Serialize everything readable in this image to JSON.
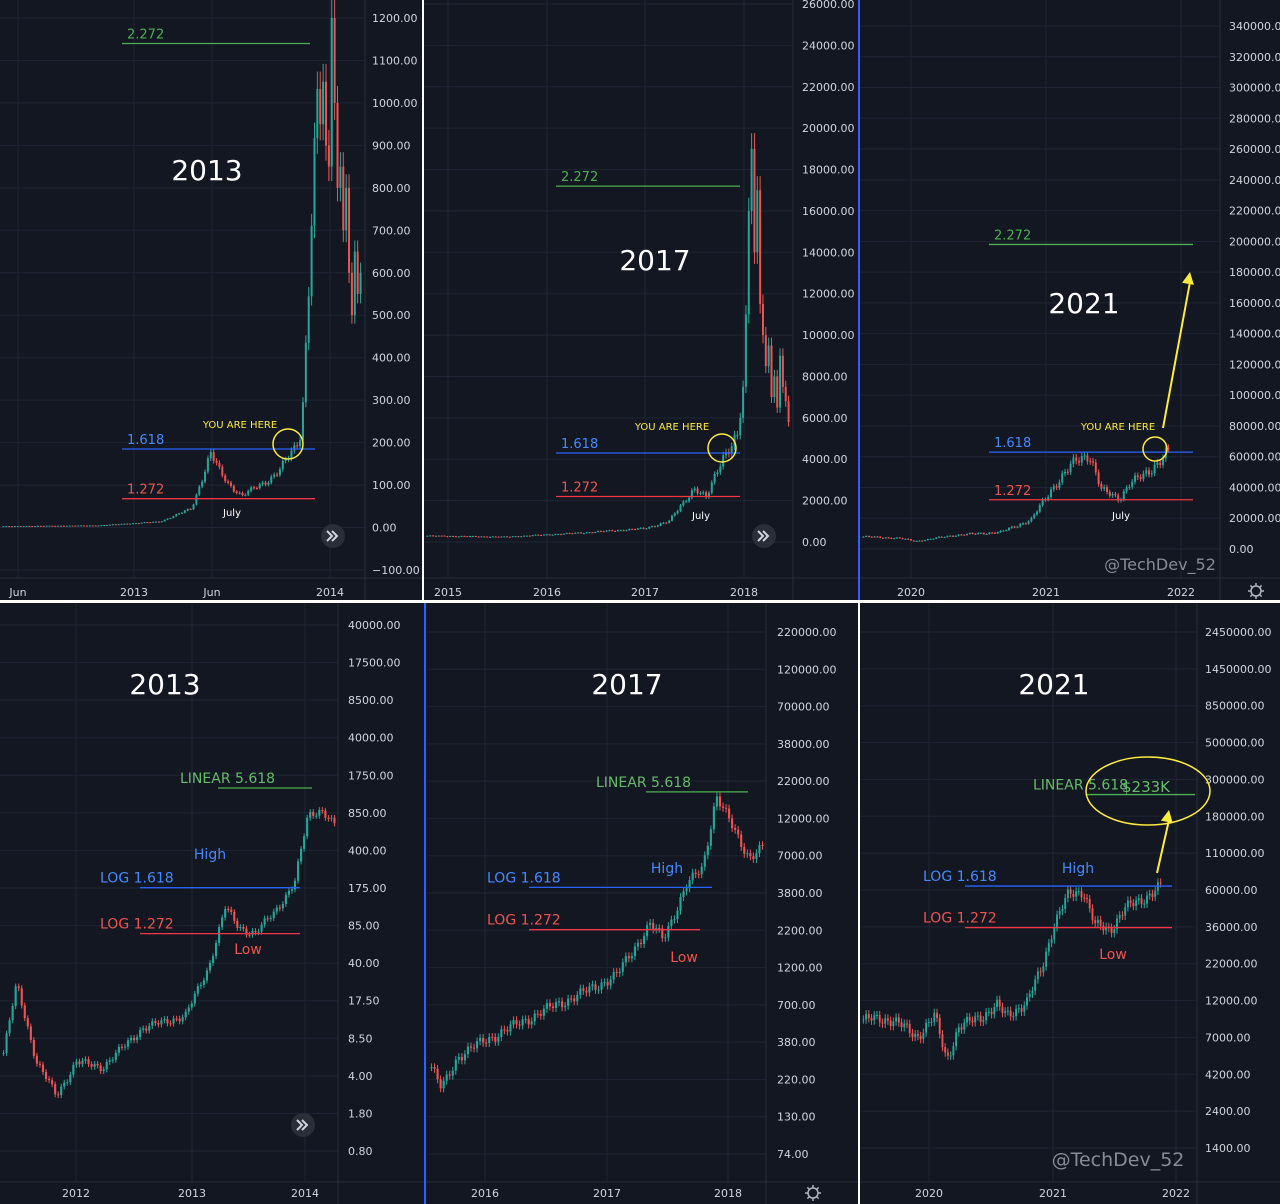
{
  "watermark": "@TechDev_52",
  "colors": {
    "background": "#131722",
    "grid": "#1e2433",
    "axis_text": "#d1d4dc",
    "bull": "#26a69a",
    "bear": "#ef5350",
    "fib_2272": "#4caf50",
    "fib_1618": "#2962ff",
    "fib_1272": "#f23645",
    "linear_label": "#66bb6a",
    "log_1618_label": "#448aff",
    "log_1272_label": "#ef5350",
    "annotation_yellow": "#ffeb3b",
    "divider_blue": "#2962ff"
  },
  "icons": {
    "scroll": "double-chevron-right-icon",
    "settings": "gear-icon"
  },
  "chart_data": [
    {
      "type": "candlestick",
      "scale": "linear",
      "title": "2013",
      "y_ticks": [
        "1200.00",
        "1100.00",
        "1000.00",
        "900.00",
        "800.00",
        "700.00",
        "600.00",
        "500.00",
        "400.00",
        "300.00",
        "200.00",
        "100.00",
        "0.00",
        "−100.00"
      ],
      "x_ticks": [
        "Jun",
        "2013",
        "Jun",
        "2014"
      ],
      "fib_levels": [
        {
          "label": "2.272",
          "price": 1140
        },
        {
          "label": "1.618",
          "price": 185
        },
        {
          "label": "1.272",
          "price": 68
        }
      ],
      "annotations": {
        "you_are_here": "YOU ARE HERE",
        "month_marker": "July"
      },
      "waypoints": [
        {
          "t": 0.0,
          "p": 3
        },
        {
          "t": 0.3,
          "p": 5
        },
        {
          "t": 0.5,
          "p": 14
        },
        {
          "t": 0.6,
          "p": 45
        },
        {
          "t": 0.66,
          "p": 175
        },
        {
          "t": 0.69,
          "p": 130
        },
        {
          "t": 0.72,
          "p": 100
        },
        {
          "t": 0.76,
          "p": 75
        },
        {
          "t": 0.84,
          "p": 110
        },
        {
          "t": 0.88,
          "p": 135
        },
        {
          "t": 0.93,
          "p": 190
        },
        {
          "t": 0.95,
          "p": 230
        },
        {
          "t": 1.0,
          "p": 1000
        }
      ],
      "tail": [
        950,
        1050,
        900,
        850,
        1200,
        1000,
        800,
        850,
        700,
        800,
        600,
        500,
        650,
        550,
        600
      ]
    },
    {
      "type": "candlestick",
      "scale": "linear",
      "title": "2017",
      "y_ticks": [
        "26000.00",
        "24000.00",
        "22000.00",
        "20000.00",
        "18000.00",
        "16000.00",
        "14000.00",
        "12000.00",
        "10000.00",
        "8000.00",
        "6000.00",
        "4000.00",
        "2000.00",
        "0.00"
      ],
      "x_ticks": [
        "2015",
        "2016",
        "2017",
        "2018"
      ],
      "fib_levels": [
        {
          "label": "2.272",
          "price": 17200
        },
        {
          "label": "1.618",
          "price": 4300
        },
        {
          "label": "1.272",
          "price": 2200
        }
      ],
      "annotations": {
        "you_are_here": "YOU ARE HERE",
        "month_marker": "July"
      },
      "waypoints": [
        {
          "t": 0.0,
          "p": 300
        },
        {
          "t": 0.25,
          "p": 250
        },
        {
          "t": 0.48,
          "p": 430
        },
        {
          "t": 0.7,
          "p": 650
        },
        {
          "t": 0.78,
          "p": 1000
        },
        {
          "t": 0.86,
          "p": 2600
        },
        {
          "t": 0.9,
          "p": 2100
        },
        {
          "t": 0.95,
          "p": 4100
        },
        {
          "t": 1.0,
          "p": 5000
        }
      ],
      "tail": [
        6000,
        7500,
        11000,
        16000,
        19000,
        14000,
        17000,
        11500,
        10000,
        8500,
        9500,
        7000,
        8000,
        6500,
        9000,
        7500,
        6800,
        5800
      ]
    },
    {
      "type": "candlestick",
      "scale": "linear",
      "title": "2021",
      "y_ticks": [
        "340000.00",
        "320000.00",
        "300000.00",
        "280000.00",
        "260000.00",
        "240000.00",
        "220000.00",
        "200000.00",
        "180000.00",
        "160000.00",
        "140000.00",
        "120000.00",
        "100000.00",
        "80000.00",
        "60000.00",
        "40000.00",
        "20000.00",
        "0.00"
      ],
      "x_ticks": [
        "2020",
        "2021",
        "2022"
      ],
      "fib_levels": [
        {
          "label": "2.272",
          "price": 198000
        },
        {
          "label": "1.618",
          "price": 63000
        },
        {
          "label": "1.272",
          "price": 32000
        }
      ],
      "annotations": {
        "you_are_here": "YOU ARE HERE",
        "month_marker": "July"
      },
      "waypoints": [
        {
          "t": 0.0,
          "p": 8000
        },
        {
          "t": 0.12,
          "p": 7000
        },
        {
          "t": 0.17,
          "p": 5000
        },
        {
          "t": 0.3,
          "p": 9000
        },
        {
          "t": 0.45,
          "p": 11000
        },
        {
          "t": 0.55,
          "p": 19000
        },
        {
          "t": 0.62,
          "p": 40000
        },
        {
          "t": 0.7,
          "p": 58000
        },
        {
          "t": 0.74,
          "p": 62000
        },
        {
          "t": 0.78,
          "p": 38000
        },
        {
          "t": 0.84,
          "p": 33000
        },
        {
          "t": 0.87,
          "p": 42000
        },
        {
          "t": 0.92,
          "p": 48000
        },
        {
          "t": 1.0,
          "p": 63000
        }
      ],
      "tail": []
    },
    {
      "type": "candlestick",
      "scale": "log",
      "title": "2013",
      "y_ticks": [
        "40000.00",
        "17500.00",
        "8500.00",
        "4000.00",
        "1750.00",
        "850.00",
        "400.00",
        "175.00",
        "85.00",
        "40.00",
        "17.50",
        "8.50",
        "4.00",
        "1.80",
        "0.80"
      ],
      "x_ticks": [
        "2012",
        "2013",
        "2014"
      ],
      "fib_levels": [
        {
          "label": "LINEAR 5.618",
          "price": 1400
        },
        {
          "label": "LOG 1.618",
          "price": 180
        },
        {
          "label": "LOG 1.272",
          "price": 70
        }
      ],
      "annotations": {
        "high": "High",
        "low": "Low"
      },
      "waypoints": [
        {
          "t": 0.0,
          "p": 6
        },
        {
          "t": 0.04,
          "p": 25
        },
        {
          "t": 0.1,
          "p": 5
        },
        {
          "t": 0.16,
          "p": 2.5
        },
        {
          "t": 0.22,
          "p": 5
        },
        {
          "t": 0.3,
          "p": 4.5
        },
        {
          "t": 0.42,
          "p": 10
        },
        {
          "t": 0.55,
          "p": 13
        },
        {
          "t": 0.62,
          "p": 35
        },
        {
          "t": 0.67,
          "p": 120
        },
        {
          "t": 0.71,
          "p": 80
        },
        {
          "t": 0.76,
          "p": 70
        },
        {
          "t": 0.82,
          "p": 110
        },
        {
          "t": 0.88,
          "p": 200
        },
        {
          "t": 0.92,
          "p": 800
        },
        {
          "t": 0.96,
          "p": 900
        },
        {
          "t": 1.0,
          "p": 650
        }
      ],
      "tail": []
    },
    {
      "type": "candlestick",
      "scale": "log",
      "title": "2017",
      "y_ticks": [
        "220000.00",
        "120000.00",
        "70000.00",
        "38000.00",
        "22000.00",
        "12000.00",
        "7000.00",
        "3800.00",
        "2200.00",
        "1200.00",
        "700.00",
        "380.00",
        "220.00",
        "130.00",
        "74.00"
      ],
      "x_ticks": [
        "2016",
        "2017",
        "2018"
      ],
      "fib_levels": [
        {
          "label": "LINEAR 5.618",
          "price": 19000
        },
        {
          "label": "LOG 1.618",
          "price": 4400
        },
        {
          "label": "LOG 1.272",
          "price": 2300
        }
      ],
      "annotations": {
        "high": "High",
        "low": "Low"
      },
      "waypoints": [
        {
          "t": 0.0,
          "p": 280
        },
        {
          "t": 0.03,
          "p": 200
        },
        {
          "t": 0.08,
          "p": 330
        },
        {
          "t": 0.16,
          "p": 420
        },
        {
          "t": 0.3,
          "p": 600
        },
        {
          "t": 0.36,
          "p": 700
        },
        {
          "t": 0.47,
          "p": 900
        },
        {
          "t": 0.56,
          "p": 1150
        },
        {
          "t": 0.66,
          "p": 2500
        },
        {
          "t": 0.7,
          "p": 2000
        },
        {
          "t": 0.77,
          "p": 4500
        },
        {
          "t": 0.82,
          "p": 6000
        },
        {
          "t": 0.86,
          "p": 18000
        },
        {
          "t": 0.92,
          "p": 10000
        },
        {
          "t": 0.96,
          "p": 7000
        },
        {
          "t": 1.0,
          "p": 8000
        }
      ],
      "tail": []
    },
    {
      "type": "candlestick",
      "scale": "log",
      "title": "2021",
      "y_ticks": [
        "2450000.00",
        "1450000.00",
        "850000.00",
        "500000.00",
        "300000.00",
        "180000.00",
        "110000.00",
        "60000.00",
        "36000.00",
        "22000.00",
        "12000.00",
        "7000.00",
        "4200.00",
        "2400.00",
        "1400.00"
      ],
      "x_ticks": [
        "2020",
        "2021",
        "2022"
      ],
      "fib_levels": [
        {
          "label": "LINEAR 5.618",
          "price": 233000
        },
        {
          "label": "LOG 1.618",
          "price": 62000
        },
        {
          "label": "LOG 1.272",
          "price": 34000
        }
      ],
      "target_label": "$233K",
      "annotations": {
        "high": "High",
        "low": "Low"
      },
      "waypoints": [
        {
          "t": 0.0,
          "p": 9000
        },
        {
          "t": 0.1,
          "p": 9000
        },
        {
          "t": 0.18,
          "p": 7000
        },
        {
          "t": 0.24,
          "p": 9500
        },
        {
          "t": 0.28,
          "p": 5000
        },
        {
          "t": 0.32,
          "p": 8000
        },
        {
          "t": 0.4,
          "p": 9500
        },
        {
          "t": 0.45,
          "p": 11000
        },
        {
          "t": 0.48,
          "p": 9500
        },
        {
          "t": 0.55,
          "p": 11500
        },
        {
          "t": 0.6,
          "p": 19000
        },
        {
          "t": 0.64,
          "p": 35000
        },
        {
          "t": 0.69,
          "p": 55000
        },
        {
          "t": 0.74,
          "p": 58000
        },
        {
          "t": 0.78,
          "p": 35000
        },
        {
          "t": 0.83,
          "p": 33000
        },
        {
          "t": 0.88,
          "p": 45000
        },
        {
          "t": 0.93,
          "p": 50000
        },
        {
          "t": 1.0,
          "p": 62000
        }
      ],
      "tail": []
    }
  ]
}
